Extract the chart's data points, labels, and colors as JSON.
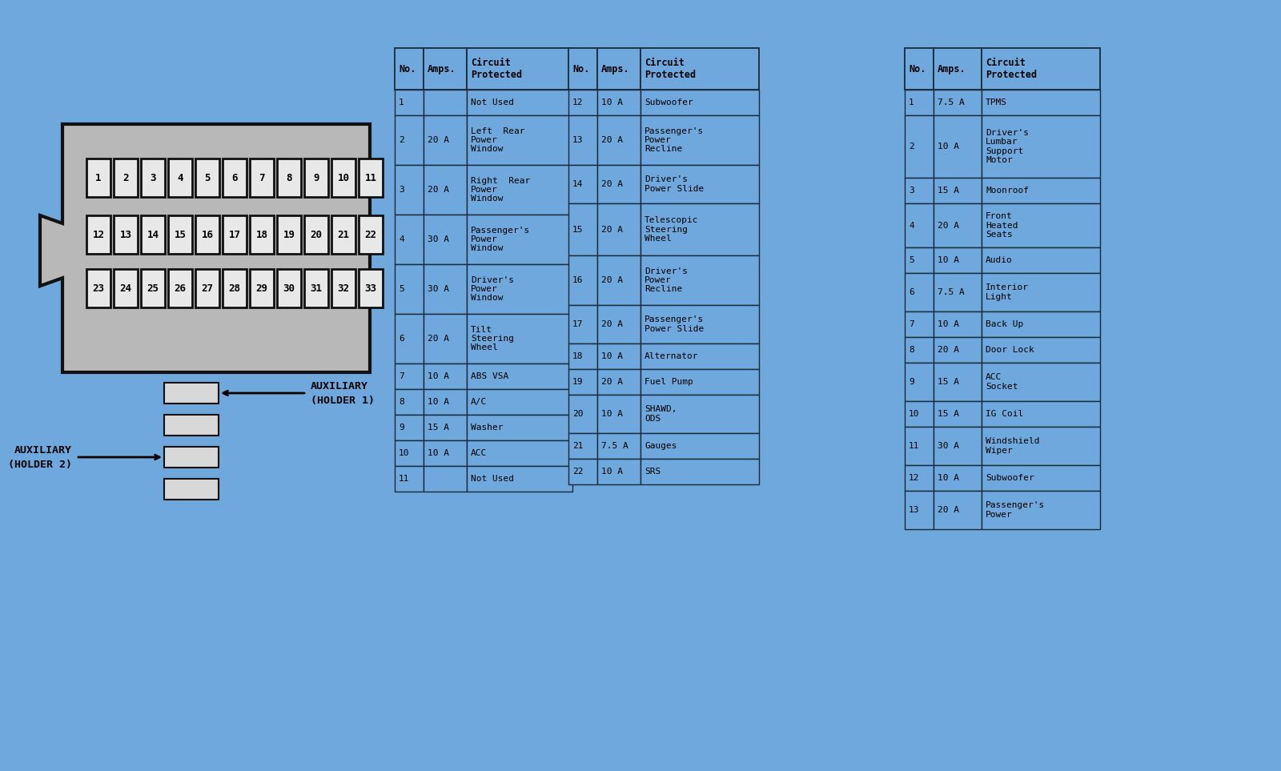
{
  "bg_color": "#6fa8dc",
  "fuse_box_color": "#b8b8b8",
  "fuse_box_border": "#111111",
  "fuse_color": "#e8e8e8",
  "fuse_border": "#111111",
  "cell_border": "#1a1a2e",
  "table1": {
    "headers": [
      "No.",
      "Amps.",
      "Circuit\nProtected"
    ],
    "rows": [
      [
        "1",
        "",
        "Not Used"
      ],
      [
        "2",
        "20 A",
        "Left  Rear\nPower\nWindow"
      ],
      [
        "3",
        "20 A",
        "Right  Rear\nPower\nWindow"
      ],
      [
        "4",
        "30 A",
        "Passenger's\nPower\nWindow"
      ],
      [
        "5",
        "30 A",
        "Driver's\nPower\nWindow"
      ],
      [
        "6",
        "20 A",
        "Tilt\nSteering\nWheel"
      ],
      [
        "7",
        "10 A",
        "ABS VSA"
      ],
      [
        "8",
        "10 A",
        "A/C"
      ],
      [
        "9",
        "15 A",
        "Washer"
      ],
      [
        "10",
        "10 A",
        "ACC"
      ],
      [
        "11",
        "",
        "Not Used"
      ]
    ]
  },
  "table2": {
    "headers": [
      "No.",
      "Amps.",
      "Circuit\nProtected"
    ],
    "rows": [
      [
        "12",
        "10 A",
        "Subwoofer"
      ],
      [
        "13",
        "20 A",
        "Passenger's\nPower\nRecline"
      ],
      [
        "14",
        "20 A",
        "Driver's\nPower Slide"
      ],
      [
        "15",
        "20 A",
        "Telescopic\nSteering\nWheel"
      ],
      [
        "16",
        "20 A",
        "Driver's\nPower\nRecline"
      ],
      [
        "17",
        "20 A",
        "Passenger's\nPower Slide"
      ],
      [
        "18",
        "10 A",
        "Alternator"
      ],
      [
        "19",
        "20 A",
        "Fuel Pump"
      ],
      [
        "20",
        "10 A",
        "SHAWD,\nODS"
      ],
      [
        "21",
        "7.5 A",
        "Gauges"
      ],
      [
        "22",
        "10 A",
        "SRS"
      ]
    ]
  },
  "table3": {
    "headers": [
      "No.",
      "Amps.",
      "Circuit\nProtected"
    ],
    "rows": [
      [
        "1",
        "7.5 A",
        "TPMS"
      ],
      [
        "2",
        "10 A",
        "Driver's\nLumbar\nSupport\nMotor"
      ],
      [
        "3",
        "15 A",
        "Moonroof"
      ],
      [
        "4",
        "20 A",
        "Front\nHeated\nSeats"
      ],
      [
        "5",
        "10 A",
        "Audio"
      ],
      [
        "6",
        "7.5 A",
        "Interior\nLight"
      ],
      [
        "7",
        "10 A",
        "Back Up"
      ],
      [
        "8",
        "20 A",
        "Door Lock"
      ],
      [
        "9",
        "15 A",
        "ACC\nSocket"
      ],
      [
        "10",
        "15 A",
        "IG Coil"
      ],
      [
        "11",
        "30 A",
        "Windshield\nWiper"
      ],
      [
        "12",
        "10 A",
        "Subwoofer"
      ],
      [
        "13",
        "20 A",
        "Passenger's\nPower"
      ]
    ]
  }
}
